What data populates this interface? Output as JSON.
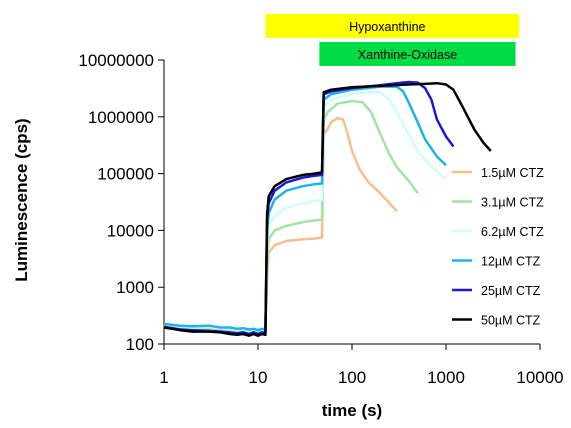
{
  "chart_data": {
    "type": "line",
    "xlabel": "time (s)",
    "ylabel": "Luminescence (cps)",
    "x_scale": "log",
    "y_scale": "log",
    "xlim": [
      1,
      10000
    ],
    "ylim": [
      100,
      10000000
    ],
    "x_tick_labels": [
      "1",
      "10",
      "100",
      "1000",
      "10000"
    ],
    "y_tick_labels": [
      "100",
      "1000",
      "10000",
      "100000",
      "1000000",
      "10000000"
    ],
    "grid": false,
    "legend_position": "right",
    "annotations": [
      {
        "label": "Hypoxanthine",
        "x_start": 12,
        "x_end": 6000,
        "color": "#ffff00"
      },
      {
        "label": "Xanthine-Oxidase",
        "x_start": 45,
        "x_end": 5500,
        "color": "#00dd44"
      }
    ],
    "series": [
      {
        "name": "1.5µM CTZ",
        "color": "#f7bf8c",
        "points": [
          [
            1,
            210
          ],
          [
            1.5,
            190
          ],
          [
            2,
            185
          ],
          [
            3,
            190
          ],
          [
            4,
            180
          ],
          [
            5,
            175
          ],
          [
            6,
            165
          ],
          [
            7,
            170
          ],
          [
            8,
            160
          ],
          [
            9,
            170
          ],
          [
            10,
            160
          ],
          [
            11,
            170
          ],
          [
            12,
            165
          ],
          [
            12.5,
            1500
          ],
          [
            13,
            4000
          ],
          [
            15,
            5500
          ],
          [
            20,
            6500
          ],
          [
            30,
            7000
          ],
          [
            40,
            7200
          ],
          [
            48,
            7500
          ],
          [
            50,
            500000
          ],
          [
            55,
            600000
          ],
          [
            60,
            800000
          ],
          [
            70,
            950000
          ],
          [
            80,
            900000
          ],
          [
            90,
            500000
          ],
          [
            100,
            250000
          ],
          [
            120,
            120000
          ],
          [
            150,
            70000
          ],
          [
            200,
            45000
          ],
          [
            300,
            22000
          ]
        ]
      },
      {
        "name": "3.1µM CTZ",
        "color": "#a3e3a3",
        "points": [
          [
            1,
            215
          ],
          [
            1.5,
            195
          ],
          [
            2,
            190
          ],
          [
            3,
            195
          ],
          [
            4,
            185
          ],
          [
            5,
            180
          ],
          [
            6,
            170
          ],
          [
            7,
            175
          ],
          [
            8,
            165
          ],
          [
            9,
            175
          ],
          [
            10,
            165
          ],
          [
            11,
            175
          ],
          [
            12,
            170
          ],
          [
            12.5,
            3000
          ],
          [
            13,
            7000
          ],
          [
            15,
            10000
          ],
          [
            20,
            12000
          ],
          [
            30,
            14000
          ],
          [
            40,
            15000
          ],
          [
            48,
            15500
          ],
          [
            50,
            900000
          ],
          [
            55,
            1200000
          ],
          [
            70,
            1700000
          ],
          [
            100,
            1900000
          ],
          [
            130,
            1800000
          ],
          [
            160,
            1200000
          ],
          [
            200,
            500000
          ],
          [
            250,
            220000
          ],
          [
            300,
            130000
          ],
          [
            400,
            75000
          ],
          [
            500,
            45000
          ]
        ]
      },
      {
        "name": "6.2µM CTZ",
        "color": "#cffcff",
        "points": [
          [
            1,
            220
          ],
          [
            1.5,
            200
          ],
          [
            2,
            195
          ],
          [
            3,
            200
          ],
          [
            4,
            190
          ],
          [
            5,
            185
          ],
          [
            6,
            175
          ],
          [
            7,
            180
          ],
          [
            8,
            170
          ],
          [
            9,
            180
          ],
          [
            10,
            170
          ],
          [
            11,
            180
          ],
          [
            12,
            175
          ],
          [
            12.5,
            6000
          ],
          [
            13,
            12000
          ],
          [
            15,
            18000
          ],
          [
            20,
            25000
          ],
          [
            30,
            30000
          ],
          [
            40,
            33000
          ],
          [
            48,
            34000
          ],
          [
            50,
            1500000
          ],
          [
            60,
            2000000
          ],
          [
            100,
            2500000
          ],
          [
            150,
            2700000
          ],
          [
            200,
            2700000
          ],
          [
            250,
            2000000
          ],
          [
            300,
            1200000
          ],
          [
            400,
            500000
          ],
          [
            500,
            250000
          ],
          [
            700,
            130000
          ],
          [
            1000,
            80000
          ]
        ]
      },
      {
        "name": "12µM CTZ",
        "color": "#1eb3e8",
        "points": [
          [
            1,
            225
          ],
          [
            1.5,
            210
          ],
          [
            2,
            205
          ],
          [
            3,
            210
          ],
          [
            4,
            195
          ],
          [
            5,
            195
          ],
          [
            6,
            185
          ],
          [
            7,
            190
          ],
          [
            8,
            180
          ],
          [
            9,
            185
          ],
          [
            10,
            175
          ],
          [
            11,
            185
          ],
          [
            12,
            180
          ],
          [
            12.5,
            10000
          ],
          [
            13,
            20000
          ],
          [
            15,
            35000
          ],
          [
            20,
            50000
          ],
          [
            30,
            60000
          ],
          [
            40,
            65000
          ],
          [
            48,
            67000
          ],
          [
            50,
            2000000
          ],
          [
            60,
            2500000
          ],
          [
            100,
            3000000
          ],
          [
            200,
            3400000
          ],
          [
            300,
            3400000
          ],
          [
            350,
            2800000
          ],
          [
            400,
            1800000
          ],
          [
            500,
            800000
          ],
          [
            600,
            400000
          ],
          [
            800,
            200000
          ],
          [
            1000,
            140000
          ]
        ]
      },
      {
        "name": "25µM CTZ",
        "color": "#1a1ad6",
        "points": [
          [
            1,
            200
          ],
          [
            1.5,
            180
          ],
          [
            2,
            175
          ],
          [
            3,
            170
          ],
          [
            4,
            165
          ],
          [
            5,
            160
          ],
          [
            6,
            155
          ],
          [
            7,
            160
          ],
          [
            8,
            150
          ],
          [
            9,
            160
          ],
          [
            10,
            150
          ],
          [
            11,
            160
          ],
          [
            12,
            155
          ],
          [
            12.5,
            15000
          ],
          [
            13,
            30000
          ],
          [
            15,
            50000
          ],
          [
            20,
            70000
          ],
          [
            30,
            85000
          ],
          [
            40,
            92000
          ],
          [
            48,
            95000
          ],
          [
            50,
            2500000
          ],
          [
            60,
            2800000
          ],
          [
            100,
            3200000
          ],
          [
            200,
            3600000
          ],
          [
            300,
            3900000
          ],
          [
            400,
            4100000
          ],
          [
            500,
            4000000
          ],
          [
            600,
            3200000
          ],
          [
            700,
            2000000
          ],
          [
            800,
            900000
          ],
          [
            1000,
            450000
          ],
          [
            1200,
            300000
          ]
        ]
      },
      {
        "name": "50µM CTZ",
        "color": "#000000",
        "points": [
          [
            1,
            195
          ],
          [
            1.5,
            175
          ],
          [
            2,
            165
          ],
          [
            3,
            165
          ],
          [
            4,
            160
          ],
          [
            5,
            150
          ],
          [
            6,
            145
          ],
          [
            7,
            150
          ],
          [
            8,
            140
          ],
          [
            9,
            150
          ],
          [
            10,
            140
          ],
          [
            11,
            150
          ],
          [
            12,
            145
          ],
          [
            12.5,
            20000
          ],
          [
            13,
            40000
          ],
          [
            15,
            60000
          ],
          [
            20,
            80000
          ],
          [
            30,
            95000
          ],
          [
            40,
            100000
          ],
          [
            48,
            105000
          ],
          [
            50,
            2700000
          ],
          [
            60,
            3000000
          ],
          [
            100,
            3300000
          ],
          [
            200,
            3500000
          ],
          [
            400,
            3700000
          ],
          [
            600,
            3800000
          ],
          [
            800,
            3900000
          ],
          [
            1000,
            3700000
          ],
          [
            1200,
            3000000
          ],
          [
            1500,
            1500000
          ],
          [
            2000,
            600000
          ],
          [
            2500,
            350000
          ],
          [
            3000,
            250000
          ]
        ]
      }
    ]
  }
}
